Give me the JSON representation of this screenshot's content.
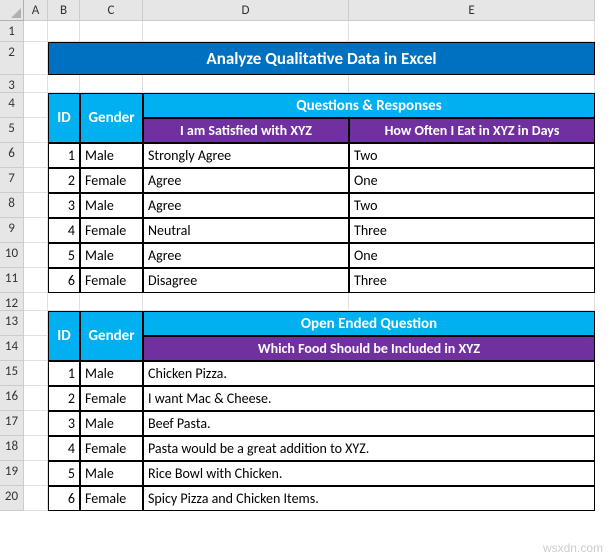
{
  "cols": [
    "A",
    "B",
    "C",
    "D",
    "E"
  ],
  "rows": [
    "1",
    "2",
    "3",
    "4",
    "5",
    "6",
    "7",
    "8",
    "9",
    "10",
    "11",
    "12",
    "13",
    "14",
    "15",
    "16",
    "17",
    "18",
    "19",
    "20"
  ],
  "title": "Analyze Qualitative Data in Excel",
  "t1": {
    "id_hdr": "ID",
    "gender_hdr": "Gender",
    "qr_hdr": "Questions & Responses",
    "q1": "I am Satisfied with XYZ",
    "q2": "How Often I Eat in XYZ in Days",
    "rows": [
      {
        "id": "1",
        "gender": "Male",
        "a1": "Strongly Agree",
        "a2": "Two"
      },
      {
        "id": "2",
        "gender": "Female",
        "a1": "Agree",
        "a2": "One"
      },
      {
        "id": "3",
        "gender": "Male",
        "a1": "Agree",
        "a2": "Two"
      },
      {
        "id": "4",
        "gender": "Female",
        "a1": "Neutral",
        "a2": "Three"
      },
      {
        "id": "5",
        "gender": "Male",
        "a1": "Agree",
        "a2": "One"
      },
      {
        "id": "6",
        "gender": "Female",
        "a1": "Disagree",
        "a2": "Three"
      }
    ]
  },
  "t2": {
    "id_hdr": "ID",
    "gender_hdr": "Gender",
    "oeq_hdr": "Open Ended Question",
    "q1": "Which Food Should be Included in XYZ",
    "rows": [
      {
        "id": "1",
        "gender": "Male",
        "a": "Chicken Pizza."
      },
      {
        "id": "2",
        "gender": "Female",
        "a": "I want Mac & Cheese."
      },
      {
        "id": "3",
        "gender": "Male",
        "a": "Beef Pasta."
      },
      {
        "id": "4",
        "gender": "Female",
        "a": "Pasta would be a great addition to XYZ."
      },
      {
        "id": "5",
        "gender": "Male",
        "a": "Rice Bowl with Chicken."
      },
      {
        "id": "6",
        "gender": "Female",
        "a": "Spicy Pizza and Chicken Items."
      }
    ]
  },
  "watermark": "wsxdn.com",
  "colors": {
    "title_bg": "#0070c0",
    "blue_bg": "#00b0f0",
    "purple_bg": "#7030a0",
    "header_text": "#ffffff",
    "grid_header_bg": "#e6e6e6",
    "border": "#000000"
  }
}
